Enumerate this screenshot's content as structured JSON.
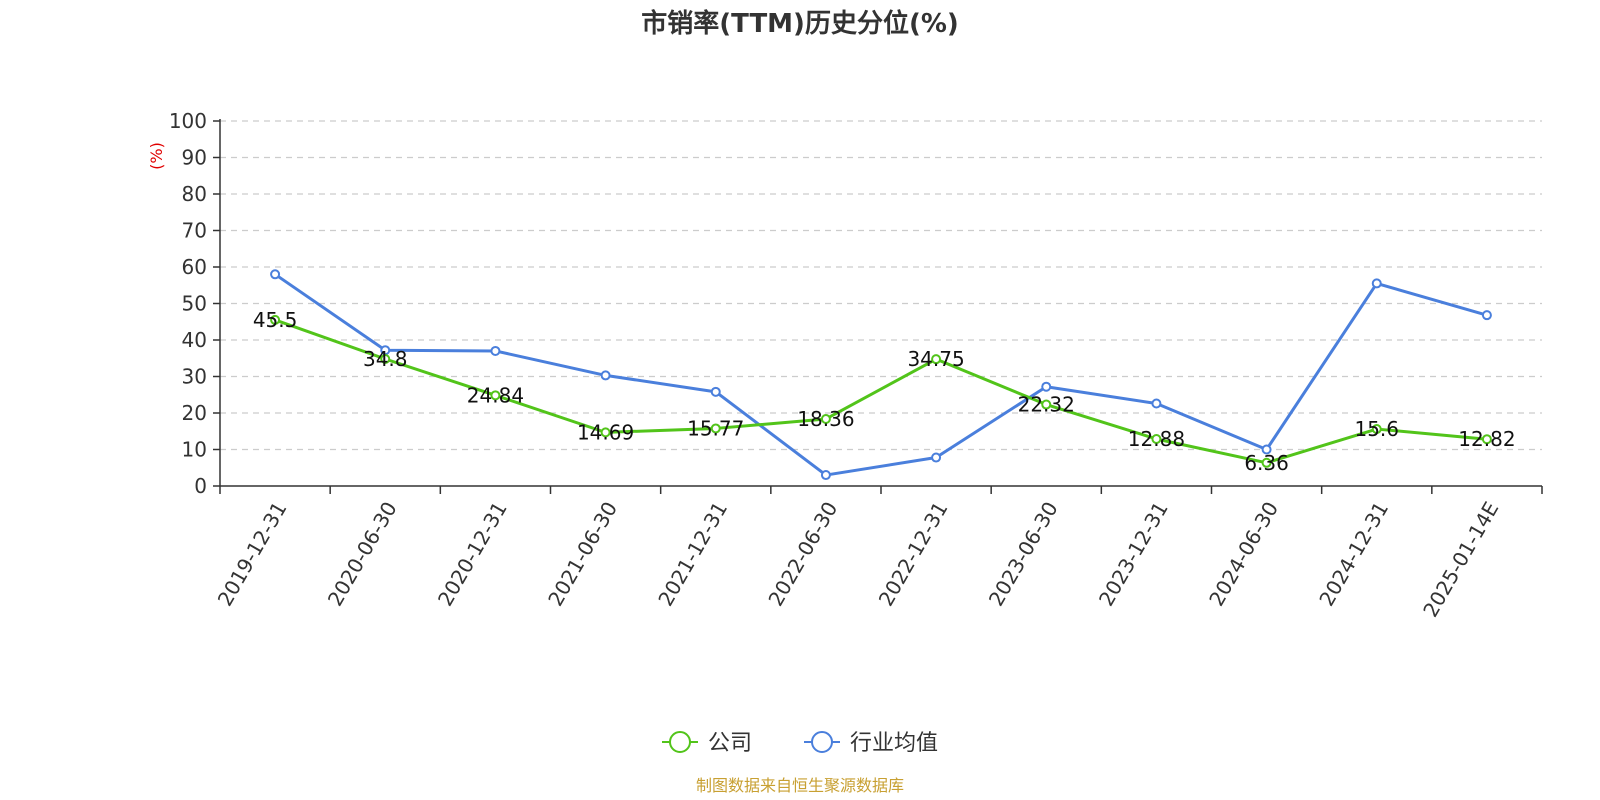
{
  "chart_data": {
    "type": "line",
    "title": "市销率(TTM)历史分位(%)",
    "ylabel": "(%)",
    "xlabel": "",
    "ylim": [
      0,
      100
    ],
    "yticks": [
      0,
      10,
      20,
      30,
      40,
      50,
      60,
      70,
      80,
      90,
      100
    ],
    "grid": true,
    "legend_position": "bottom-center",
    "categories": [
      "2019-12-31",
      "2020-06-30",
      "2020-12-31",
      "2021-06-30",
      "2021-12-31",
      "2022-06-30",
      "2022-12-31",
      "2023-06-30",
      "2023-12-31",
      "2024-06-30",
      "2024-12-31",
      "2025-01-14E"
    ],
    "series": [
      {
        "name": "公司",
        "color": "#52c41a",
        "values": [
          45.5,
          34.8,
          24.84,
          14.69,
          15.77,
          18.36,
          34.75,
          22.32,
          12.88,
          6.36,
          15.6,
          12.82
        ],
        "data_labels": [
          "45.5",
          "34.8",
          "24.84",
          "14.69",
          "15.77",
          "18.36",
          "34.75",
          "22.32",
          "12.88",
          "6.36",
          "15.6",
          "12.82"
        ]
      },
      {
        "name": "行业均值",
        "color": "#4a7fdc",
        "values": [
          58.0,
          37.2,
          37.0,
          30.3,
          25.8,
          3.0,
          7.8,
          27.2,
          22.6,
          10.0,
          55.5,
          46.8
        ]
      }
    ],
    "source": "制图数据来自恒生聚源数据库"
  }
}
